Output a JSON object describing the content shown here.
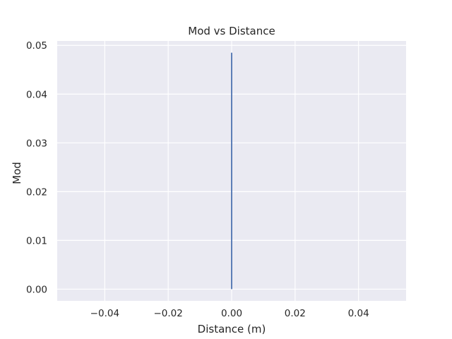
{
  "chart_data": {
    "type": "line",
    "title": "Mod vs Distance",
    "xlabel": "Distance (m)",
    "ylabel": "Mod",
    "xlim": [
      -0.055,
      0.055
    ],
    "ylim": [
      -0.0024,
      0.0509
    ],
    "xticks": [
      -0.04,
      -0.02,
      0.0,
      0.02,
      0.04
    ],
    "xtick_labels": [
      "−0.04",
      "−0.02",
      "0.00",
      "0.02",
      "0.04"
    ],
    "yticks": [
      0.0,
      0.01,
      0.02,
      0.03,
      0.04,
      0.05
    ],
    "ytick_labels": [
      "0.00",
      "0.01",
      "0.02",
      "0.03",
      "0.04",
      "0.05"
    ],
    "grid": true,
    "series": [
      {
        "x": [
          0.0,
          0.0
        ],
        "y": [
          0.0,
          0.0485
        ],
        "color": "#4c72b0"
      }
    ],
    "colors": {
      "background": "#eaeaf2",
      "grid": "#ffffff",
      "text": "#262626"
    }
  }
}
